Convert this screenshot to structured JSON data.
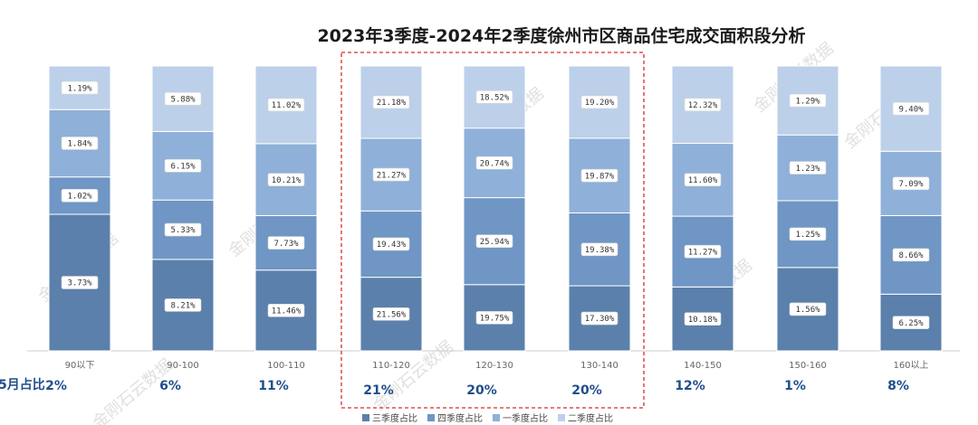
{
  "chart_data": {
    "type": "bar",
    "stacked": true,
    "normalized": true,
    "title": "2023年3季度-2024年2季度徐州市区商品住宅成交面积段分析",
    "categories": [
      "90以下",
      "90-100",
      "100-110",
      "110-120",
      "120-130",
      "130-140",
      "140-150",
      "150-160",
      "160以上"
    ],
    "series": [
      {
        "name": "三季度占比",
        "color": "#5b80ab",
        "values": [
          3.73,
          8.21,
          11.46,
          21.56,
          19.75,
          17.3,
          10.18,
          1.56,
          6.25
        ],
        "labels": [
          "3.73%",
          "8.21%",
          "11.46%",
          "21.56%",
          "19.75%",
          "17.30%",
          "10.18%",
          "1.56%",
          "6.25%"
        ]
      },
      {
        "name": "四季度占比",
        "color": "#6f96c4",
        "values": [
          1.02,
          5.33,
          7.73,
          19.43,
          25.94,
          19.38,
          11.27,
          1.25,
          8.66
        ],
        "labels": [
          "1.02%",
          "5.33%",
          "7.73%",
          "19.43%",
          "25.94%",
          "19.38%",
          "11.27%",
          "1.25%",
          "8.66%"
        ]
      },
      {
        "name": "一季度占比",
        "color": "#8fb0d8",
        "values": [
          1.84,
          6.15,
          10.21,
          21.27,
          20.74,
          19.87,
          11.6,
          1.23,
          7.09
        ],
        "labels": [
          "1.84%",
          "6.15%",
          "10.21%",
          "21.27%",
          "20.74%",
          "19.87%",
          "11.60%",
          "1.23%",
          "7.09%"
        ]
      },
      {
        "name": "二季度占比",
        "color": "#bdd0ea",
        "values": [
          1.19,
          5.88,
          11.02,
          21.18,
          18.52,
          19.2,
          12.32,
          1.29,
          9.4
        ],
        "labels": [
          "1.19%",
          "5.88%",
          "11.02%",
          "21.18%",
          "18.52%",
          "19.20%",
          "12.32%",
          "1.29%",
          "9.40%"
        ]
      }
    ],
    "share_row_label": "5月占比",
    "share_values": [
      "2%",
      "6%",
      "11%",
      "21%",
      "20%",
      "20%",
      "12%",
      "1%",
      "8%"
    ],
    "highlight": {
      "categories": [
        "110-120",
        "120-130",
        "130-140"
      ],
      "style": "dashed red box"
    },
    "legend": "bottom",
    "watermark": "金刚石云数据"
  }
}
